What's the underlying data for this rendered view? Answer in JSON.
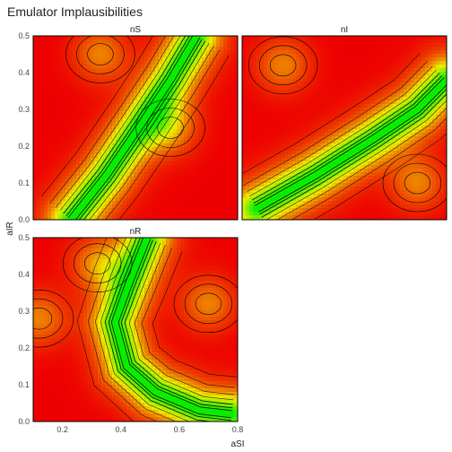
{
  "title": "Emulator Implausibilities",
  "chart_data": {
    "type": "heatmap",
    "title": "Emulator Implausibilities",
    "xlabel": "aSI",
    "ylabel": "aIR",
    "xlim": [
      0.1,
      0.8
    ],
    "ylim": [
      0.0,
      0.5
    ],
    "x_ticks": [
      "0.2",
      "0.4",
      "0.6",
      "0.8"
    ],
    "x_tick_values": [
      0.2,
      0.4,
      0.6,
      0.8
    ],
    "y_ticks": [
      "0.0",
      "0.1",
      "0.2",
      "0.3",
      "0.4",
      "0.5"
    ],
    "y_tick_values": [
      0.0,
      0.1,
      0.2,
      0.3,
      0.4,
      0.5
    ],
    "legend": "none",
    "grid": false,
    "color_scale": {
      "low": "#00ee00",
      "mid": "#eeee00",
      "high_mid": "#ee8800",
      "high": "#ee0000"
    },
    "panels": [
      {
        "name": "nS",
        "description_points": {
          "ridge": [
            [
              0.23,
              0.0
            ],
            [
              0.35,
              0.12
            ],
            [
              0.47,
              0.26
            ],
            [
              0.57,
              0.38
            ],
            [
              0.66,
              0.5
            ]
          ],
          "orange_blobs": [
            [
              0.57,
              0.25
            ],
            [
              0.33,
              0.45
            ]
          ]
        }
      },
      {
        "name": "nI",
        "description_points": {
          "ridge": [
            [
              0.15,
              0.03
            ],
            [
              0.35,
              0.12
            ],
            [
              0.55,
              0.22
            ],
            [
              0.7,
              0.3
            ],
            [
              0.8,
              0.38
            ]
          ],
          "orange_blobs": [
            [
              0.24,
              0.42
            ],
            [
              0.7,
              0.1
            ]
          ]
        }
      },
      {
        "name": "nR",
        "description_points": {
          "ridge": [
            [
              0.49,
              0.5
            ],
            [
              0.43,
              0.38
            ],
            [
              0.38,
              0.27
            ],
            [
              0.42,
              0.15
            ],
            [
              0.52,
              0.08
            ],
            [
              0.67,
              0.03
            ],
            [
              0.78,
              0.02
            ]
          ],
          "orange_blobs": [
            [
              0.12,
              0.28
            ],
            [
              0.32,
              0.43
            ],
            [
              0.7,
              0.32
            ]
          ]
        }
      }
    ]
  }
}
